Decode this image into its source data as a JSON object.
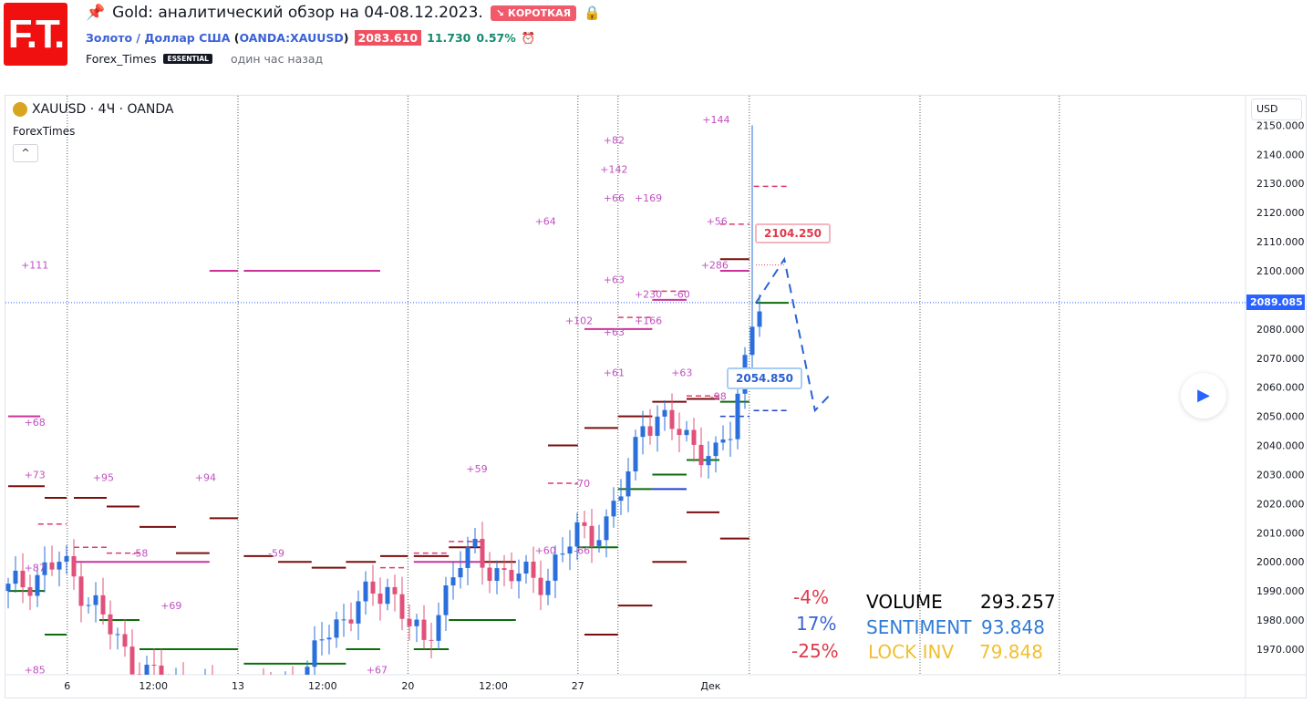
{
  "header": {
    "logo": "F.T.",
    "title": "Gold: аналитический обзор на 04-08.12.2023.",
    "direction": "↘ КОРОТКАЯ",
    "symbol_name": "Золото / Доллар США",
    "symbol_open": "(",
    "symbol_code": "OANDA:XAUUSD",
    "symbol_close": ")",
    "price": "2083.610",
    "change": "11.730",
    "change_pct": "0.57%",
    "author": "Forex_Times",
    "author_badge": "ESSENTIAL",
    "time_ago": "один час назад"
  },
  "chart": {
    "legend": "XAUUSD · 4Ч · OANDA",
    "indicator": "ForexTimes",
    "collapse": "^",
    "currency": "USD",
    "current_price": "2089.085",
    "callout_high": "2104.250",
    "callout_low": "2054.850"
  },
  "stats": {
    "rows": [
      {
        "pct": "-4%",
        "label": "VOLUME",
        "value": "293.257",
        "color": "#000000",
        "pct_color": "#e0394a"
      },
      {
        "pct": "17%",
        "label": "SENTIMENT",
        "value": "93.848",
        "color": "#2f7bd6",
        "pct_color": "#3b62d6"
      },
      {
        "pct": "-25%",
        "label": "LOCK INV",
        "value": "79.848",
        "color": "#f0c030",
        "pct_color": "#e0394a"
      }
    ]
  },
  "colors": {
    "up": "#2a6fdb",
    "down": "#e0507a",
    "level_dark": "#7b0d0d",
    "level_green": "#0b6e0b",
    "level_magenta": "#cc3399",
    "dash_red": "#e03a6a",
    "dash_blue": "#2040d0",
    "annot": "#c050c0"
  },
  "chart_data": {
    "type": "candlestick",
    "price_axis": {
      "ticks": [
        "2150.000",
        "2140.000",
        "2130.000",
        "2120.000",
        "2110.000",
        "2100.000",
        "2080.000",
        "2070.000",
        "2060.000",
        "2050.000",
        "2040.000",
        "2030.000",
        "2020.000",
        "2010.000",
        "2000.000",
        "1990.000",
        "1980.000",
        "1970.000"
      ],
      "range": [
        1960,
        2155
      ]
    },
    "time_axis": {
      "ticks": [
        {
          "label": "6",
          "t": 8.1
        },
        {
          "label": "12:00",
          "t": 19.9
        },
        {
          "label": "13",
          "t": 31.5
        },
        {
          "label": "12:00",
          "t": 43.1
        },
        {
          "label": "20",
          "t": 54.8
        },
        {
          "label": "12:00",
          "t": 66.5
        },
        {
          "label": "27",
          "t": 78.1
        },
        {
          "label": "Дек",
          "t": 96.3
        }
      ],
      "separators": [
        8.1,
        31.5,
        54.8,
        78.1,
        83.6,
        101.6,
        125,
        144.1
      ]
    },
    "close_path": [
      [
        0,
        1990
      ],
      [
        7,
        2000
      ],
      [
        12,
        1985
      ],
      [
        16,
        1968
      ],
      [
        19,
        1962
      ],
      [
        24,
        1955
      ],
      [
        32,
        1950
      ],
      [
        41,
        1960
      ],
      [
        43,
        1975
      ],
      [
        48,
        1985
      ],
      [
        52,
        1992
      ],
      [
        57,
        1970
      ],
      [
        59,
        1985
      ],
      [
        62,
        2000
      ],
      [
        64,
        2003
      ],
      [
        68,
        1995
      ],
      [
        74,
        1995
      ],
      [
        78,
        2010
      ],
      [
        82,
        2012
      ],
      [
        85,
        2030
      ],
      [
        87,
        2050
      ],
      [
        92,
        2045
      ],
      [
        97,
        2035
      ],
      [
        99,
        2045
      ],
      [
        101,
        2070
      ],
      [
        102,
        2085
      ],
      [
        103,
        2089
      ]
    ],
    "spike": {
      "t": 102,
      "high": 2150
    },
    "levels": [
      {
        "p": 2026,
        "t1": 0,
        "t2": 5,
        "k": "dark"
      },
      {
        "p": 2022,
        "t1": 5,
        "t2": 8,
        "k": "dark"
      },
      {
        "p": 2022,
        "t1": 9,
        "t2": 13.5,
        "k": "dark"
      },
      {
        "p": 2019,
        "t1": 13.5,
        "t2": 18,
        "k": "dark"
      },
      {
        "p": 2012,
        "t1": 18,
        "t2": 23,
        "k": "dark"
      },
      {
        "p": 2003,
        "t1": 23,
        "t2": 27.6,
        "k": "dark"
      },
      {
        "p": 2015,
        "t1": 27.6,
        "t2": 31.5,
        "k": "dark"
      },
      {
        "p": 2002,
        "t1": 32.3,
        "t2": 36.3,
        "k": "dark"
      },
      {
        "p": 2000,
        "t1": 37,
        "t2": 41.6,
        "k": "dark"
      },
      {
        "p": 1998,
        "t1": 41.6,
        "t2": 46.3,
        "k": "dark"
      },
      {
        "p": 2000,
        "t1": 46.3,
        "t2": 50.4,
        "k": "dark"
      },
      {
        "p": 2002,
        "t1": 51,
        "t2": 54.8,
        "k": "dark"
      },
      {
        "p": 2002,
        "t1": 55.6,
        "t2": 60.4,
        "k": "dark"
      },
      {
        "p": 2005,
        "t1": 60.4,
        "t2": 65,
        "k": "dark"
      },
      {
        "p": 2000,
        "t1": 65,
        "t2": 69.6,
        "k": "dark"
      },
      {
        "p": 2040,
        "t1": 74,
        "t2": 78.1,
        "k": "dark"
      },
      {
        "p": 2046,
        "t1": 79,
        "t2": 83.6,
        "k": "dark"
      },
      {
        "p": 2050,
        "t1": 83.6,
        "t2": 88.3,
        "k": "dark"
      },
      {
        "p": 2055,
        "t1": 88.3,
        "t2": 93,
        "k": "dark"
      },
      {
        "p": 2056,
        "t1": 93,
        "t2": 97.5,
        "k": "dark"
      },
      {
        "p": 2017,
        "t1": 93,
        "t2": 97.5,
        "k": "dark"
      },
      {
        "p": 2000,
        "t1": 88.3,
        "t2": 93,
        "k": "dark"
      },
      {
        "p": 1985,
        "t1": 83.6,
        "t2": 88.3,
        "k": "dark"
      },
      {
        "p": 1975,
        "t1": 79,
        "t2": 83.6,
        "k": "dark"
      },
      {
        "p": 2008,
        "t1": 97.6,
        "t2": 101.6,
        "k": "dark"
      },
      {
        "p": 2104,
        "t1": 97.6,
        "t2": 101.6,
        "k": "dark"
      },
      {
        "p": 1990,
        "t1": 0,
        "t2": 5,
        "k": "green"
      },
      {
        "p": 1975,
        "t1": 5,
        "t2": 8,
        "k": "green"
      },
      {
        "p": 1980,
        "t1": 12.5,
        "t2": 18,
        "k": "green"
      },
      {
        "p": 1970,
        "t1": 18,
        "t2": 31.5,
        "k": "green"
      },
      {
        "p": 1965,
        "t1": 32.3,
        "t2": 46.3,
        "k": "green"
      },
      {
        "p": 1970,
        "t1": 46.3,
        "t2": 51,
        "k": "green"
      },
      {
        "p": 1970,
        "t1": 55.6,
        "t2": 60.4,
        "k": "green"
      },
      {
        "p": 1980,
        "t1": 60.4,
        "t2": 69.6,
        "k": "green"
      },
      {
        "p": 2005,
        "t1": 78.1,
        "t2": 83.6,
        "k": "green"
      },
      {
        "p": 2025,
        "t1": 83.6,
        "t2": 88.3,
        "k": "green"
      },
      {
        "p": 2030,
        "t1": 88.3,
        "t2": 93,
        "k": "green"
      },
      {
        "p": 2035,
        "t1": 93,
        "t2": 97.5,
        "k": "green"
      },
      {
        "p": 2055,
        "t1": 97.6,
        "t2": 101.6,
        "k": "green"
      },
      {
        "p": 2089,
        "t1": 102.5,
        "t2": 107,
        "k": "green"
      },
      {
        "p": 2050,
        "t1": 0,
        "t2": 4.4,
        "k": "magenta"
      },
      {
        "p": 2100,
        "t1": 27.6,
        "t2": 31.5,
        "k": "magenta"
      },
      {
        "p": 2100,
        "t1": 32.3,
        "t2": 51,
        "k": "magenta"
      },
      {
        "p": 2000,
        "t1": 9,
        "t2": 27.6,
        "k": "magenta"
      },
      {
        "p": 2000,
        "t1": 55.6,
        "t2": 65,
        "k": "magenta"
      },
      {
        "p": 2080,
        "t1": 79,
        "t2": 88.3,
        "k": "magenta"
      },
      {
        "p": 2090,
        "t1": 88.3,
        "t2": 93,
        "k": "magenta"
      },
      {
        "p": 2100,
        "t1": 97.6,
        "t2": 101.6,
        "k": "magenta"
      },
      {
        "p": 2025,
        "t1": 88.3,
        "t2": 93,
        "k": "blue"
      },
      {
        "p": 2129,
        "t1": 102.2,
        "t2": 107,
        "k": "dash_red"
      },
      {
        "p": 2116,
        "t1": 97.6,
        "t2": 101.6,
        "k": "dash_red"
      },
      {
        "p": 2093,
        "t1": 88.3,
        "t2": 93.1,
        "k": "dash_red"
      },
      {
        "p": 2084,
        "t1": 83.6,
        "t2": 88.3,
        "k": "dash_red"
      },
      {
        "p": 2057,
        "t1": 93,
        "t2": 97.5,
        "k": "dash_red"
      },
      {
        "p": 2013,
        "t1": 4.1,
        "t2": 8,
        "k": "dash_red"
      },
      {
        "p": 2005,
        "t1": 9,
        "t2": 13.5,
        "k": "dash_red"
      },
      {
        "p": 2003,
        "t1": 13.5,
        "t2": 18,
        "k": "dash_red"
      },
      {
        "p": 2027,
        "t1": 74,
        "t2": 78.1,
        "k": "dash_red"
      },
      {
        "p": 2007,
        "t1": 60.4,
        "t2": 65,
        "k": "dash_red"
      },
      {
        "p": 2003,
        "t1": 55.6,
        "t2": 60.4,
        "k": "dash_red"
      },
      {
        "p": 1998,
        "t1": 51,
        "t2": 54.8,
        "k": "dash_red"
      },
      {
        "p": 2052,
        "t1": 102.2,
        "t2": 107,
        "k": "dash_blue"
      },
      {
        "p": 2050,
        "t1": 97.6,
        "t2": 101.6,
        "k": "dash_blue"
      }
    ],
    "annotations": [
      {
        "text": "+111",
        "t": 4.4,
        "p": 2102
      },
      {
        "text": "+68",
        "t": 4.4,
        "p": 2048
      },
      {
        "text": "+73",
        "t": 4.4,
        "p": 2030
      },
      {
        "text": "+95",
        "t": 13.8,
        "p": 2029
      },
      {
        "text": "+94",
        "t": 27.8,
        "p": 2029
      },
      {
        "text": "+59",
        "t": 65,
        "p": 2032
      },
      {
        "text": "+64",
        "t": 74.4,
        "p": 2117
      },
      {
        "text": "+82",
        "t": 83.8,
        "p": 2145
      },
      {
        "text": "+142",
        "t": 83.8,
        "p": 2135
      },
      {
        "text": "+66",
        "t": 83.8,
        "p": 2125
      },
      {
        "text": "+169",
        "t": 88.5,
        "p": 2125
      },
      {
        "text": "+144",
        "t": 97.8,
        "p": 2152
      },
      {
        "text": "+56",
        "t": 97.9,
        "p": 2117
      },
      {
        "text": "+286",
        "t": 97.6,
        "p": 2102
      },
      {
        "text": "+63",
        "t": 83.8,
        "p": 2097
      },
      {
        "text": "+230",
        "t": 88.5,
        "p": 2092
      },
      {
        "text": "-60",
        "t": 93.1,
        "p": 2092
      },
      {
        "text": "+102",
        "t": 79,
        "p": 2083
      },
      {
        "text": "+166",
        "t": 88.5,
        "p": 2083
      },
      {
        "text": "+63",
        "t": 83.8,
        "p": 2079
      },
      {
        "text": "+61",
        "t": 83.8,
        "p": 2065
      },
      {
        "text": "+63",
        "t": 93.1,
        "p": 2065
      },
      {
        "text": "-98",
        "t": 98.1,
        "p": 2057
      },
      {
        "text": "-70",
        "t": 79.4,
        "p": 2027
      },
      {
        "text": "-58",
        "t": 18.8,
        "p": 2003
      },
      {
        "text": "-59",
        "t": 37.5,
        "p": 2003
      },
      {
        "text": "+60",
        "t": 74.4,
        "p": 2004
      },
      {
        "text": "-66",
        "t": 79.4,
        "p": 2004
      },
      {
        "text": "+87",
        "t": 4.4,
        "p": 1998
      },
      {
        "text": "+69",
        "t": 23.1,
        "p": 1985
      },
      {
        "text": "+85",
        "t": 4.4,
        "p": 1963
      },
      {
        "text": "+67",
        "t": 51.3,
        "p": 1963
      }
    ],
    "projection": [
      [
        102.5,
        2089
      ],
      [
        106.4,
        2104
      ],
      [
        110.6,
        2052
      ],
      [
        112.5,
        2057
      ]
    ]
  }
}
